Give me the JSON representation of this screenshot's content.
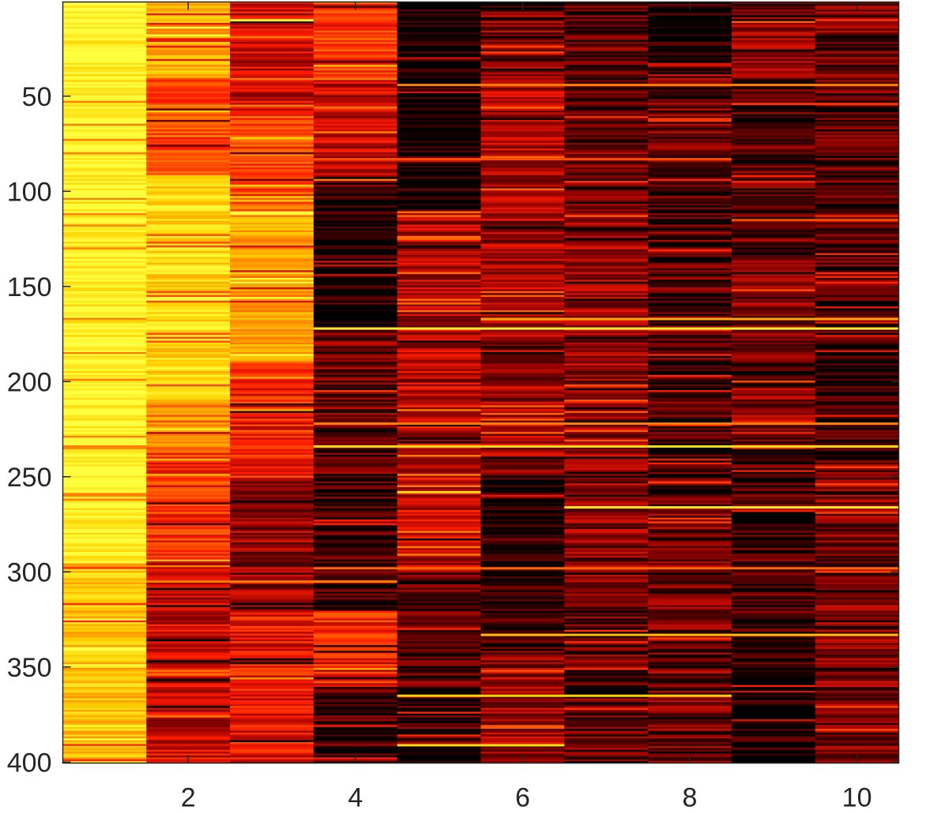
{
  "chart_data": {
    "type": "heatmap",
    "title": "",
    "xlabel": "",
    "ylabel": "",
    "colormap": "hot",
    "colormap_stops": [
      "#000000",
      "#8b0000",
      "#ff1a00",
      "#ff8000",
      "#ffd000",
      "#ffff40"
    ],
    "n_rows": 400,
    "n_cols": 10,
    "xlim": [
      0.5,
      10.5
    ],
    "ylim": [
      0.5,
      400.5
    ],
    "x_ticks": [
      2,
      4,
      6,
      8,
      10
    ],
    "x_tick_labels": [
      "2",
      "4",
      "6",
      "8",
      "10"
    ],
    "y_ticks": [
      50,
      100,
      150,
      200,
      250,
      300,
      350,
      400
    ],
    "y_tick_labels": [
      "50",
      "100",
      "150",
      "200",
      "250",
      "300",
      "350",
      "400"
    ],
    "column_profiles": [
      {
        "column": 1,
        "segments": [
          {
            "from": 1,
            "to": 295,
            "level": 0.95
          },
          {
            "from": 296,
            "to": 400,
            "level": 0.78
          }
        ]
      },
      {
        "column": 2,
        "segments": [
          {
            "from": 1,
            "to": 40,
            "level": 0.72
          },
          {
            "from": 41,
            "to": 90,
            "level": 0.5
          },
          {
            "from": 91,
            "to": 210,
            "level": 0.84
          },
          {
            "from": 211,
            "to": 235,
            "level": 0.62
          },
          {
            "from": 236,
            "to": 295,
            "level": 0.45
          },
          {
            "from": 296,
            "to": 400,
            "level": 0.3
          }
        ]
      },
      {
        "column": 3,
        "segments": [
          {
            "from": 1,
            "to": 60,
            "level": 0.3
          },
          {
            "from": 61,
            "to": 110,
            "level": 0.5
          },
          {
            "from": 111,
            "to": 190,
            "level": 0.68
          },
          {
            "from": 191,
            "to": 250,
            "level": 0.4
          },
          {
            "from": 251,
            "to": 320,
            "level": 0.22
          },
          {
            "from": 321,
            "to": 400,
            "level": 0.36
          }
        ]
      },
      {
        "column": 4,
        "segments": [
          {
            "from": 1,
            "to": 40,
            "level": 0.45
          },
          {
            "from": 41,
            "to": 97,
            "level": 0.3
          },
          {
            "from": 98,
            "to": 170,
            "level": 0.03
          },
          {
            "from": 171,
            "to": 250,
            "level": 0.16
          },
          {
            "from": 251,
            "to": 320,
            "level": 0.1
          },
          {
            "from": 321,
            "to": 360,
            "level": 0.4
          },
          {
            "from": 361,
            "to": 400,
            "level": 0.1
          }
        ]
      },
      {
        "column": 5,
        "segments": [
          {
            "from": 1,
            "to": 110,
            "level": 0.02
          },
          {
            "from": 111,
            "to": 200,
            "level": 0.26
          },
          {
            "from": 201,
            "to": 300,
            "level": 0.3
          },
          {
            "from": 301,
            "to": 400,
            "level": 0.12
          }
        ]
      },
      {
        "column": 6,
        "segments": [
          {
            "from": 1,
            "to": 40,
            "level": 0.18
          },
          {
            "from": 41,
            "to": 120,
            "level": 0.25
          },
          {
            "from": 121,
            "to": 250,
            "level": 0.24
          },
          {
            "from": 251,
            "to": 330,
            "level": 0.06
          },
          {
            "from": 331,
            "to": 400,
            "level": 0.22
          }
        ]
      },
      {
        "column": 7,
        "segments": [
          {
            "from": 1,
            "to": 100,
            "level": 0.14
          },
          {
            "from": 101,
            "to": 250,
            "level": 0.22
          },
          {
            "from": 251,
            "to": 310,
            "level": 0.2
          },
          {
            "from": 311,
            "to": 400,
            "level": 0.14
          }
        ]
      },
      {
        "column": 8,
        "segments": [
          {
            "from": 1,
            "to": 40,
            "level": 0.03
          },
          {
            "from": 41,
            "to": 91,
            "level": 0.16
          },
          {
            "from": 92,
            "to": 200,
            "level": 0.12
          },
          {
            "from": 201,
            "to": 250,
            "level": 0.1
          },
          {
            "from": 251,
            "to": 400,
            "level": 0.17
          }
        ]
      },
      {
        "column": 9,
        "segments": [
          {
            "from": 1,
            "to": 40,
            "level": 0.22
          },
          {
            "from": 41,
            "to": 130,
            "level": 0.12
          },
          {
            "from": 131,
            "to": 220,
            "level": 0.2
          },
          {
            "from": 221,
            "to": 360,
            "level": 0.1
          },
          {
            "from": 361,
            "to": 400,
            "level": 0.03
          }
        ]
      },
      {
        "column": 10,
        "segments": [
          {
            "from": 1,
            "to": 60,
            "level": 0.16
          },
          {
            "from": 61,
            "to": 150,
            "level": 0.12
          },
          {
            "from": 151,
            "to": 240,
            "level": 0.08
          },
          {
            "from": 241,
            "to": 330,
            "level": 0.18
          },
          {
            "from": 331,
            "to": 400,
            "level": 0.18
          }
        ]
      }
    ],
    "bright_rows": [
      {
        "row": 10,
        "from_col": 3,
        "to_col": 3,
        "level": 0.95
      },
      {
        "row": 44,
        "from_col": 5,
        "to_col": 10,
        "level": 0.6
      },
      {
        "row": 54,
        "from_col": 9,
        "to_col": 10,
        "level": 0.45
      },
      {
        "row": 83,
        "from_col": 2,
        "to_col": 8,
        "level": 0.5
      },
      {
        "row": 115,
        "from_col": 9,
        "to_col": 10,
        "level": 0.5
      },
      {
        "row": 167,
        "from_col": 6,
        "to_col": 10,
        "level": 0.7
      },
      {
        "row": 172,
        "from_col": 4,
        "to_col": 10,
        "level": 0.92
      },
      {
        "row": 222,
        "from_col": 4,
        "to_col": 10,
        "level": 0.6
      },
      {
        "row": 234,
        "from_col": 4,
        "to_col": 10,
        "level": 0.85
      },
      {
        "row": 258,
        "from_col": 5,
        "to_col": 5,
        "level": 0.85
      },
      {
        "row": 266,
        "from_col": 7,
        "to_col": 10,
        "level": 0.92
      },
      {
        "row": 298,
        "from_col": 4,
        "to_col": 10,
        "level": 0.55
      },
      {
        "row": 305,
        "from_col": 2,
        "to_col": 4,
        "level": 0.6
      },
      {
        "row": 333,
        "from_col": 6,
        "to_col": 10,
        "level": 0.75
      },
      {
        "row": 365,
        "from_col": 5,
        "to_col": 8,
        "level": 0.8
      },
      {
        "row": 391,
        "from_col": 5,
        "to_col": 6,
        "level": 0.85
      }
    ]
  }
}
